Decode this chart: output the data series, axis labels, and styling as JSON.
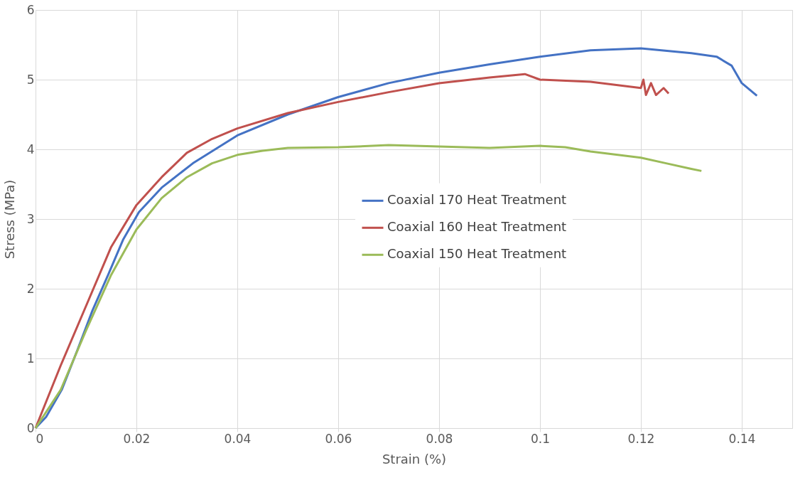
{
  "chart_data": {
    "type": "line",
    "xlabel": "Strain (%)",
    "ylabel": "Stress (MPa)",
    "xlim": [
      0,
      0.15
    ],
    "xticks": [
      0,
      0.02,
      0.04,
      0.06,
      0.08,
      0.1,
      0.12,
      0.14
    ],
    "ylim": [
      0,
      6
    ],
    "yticks": [
      0,
      1,
      2,
      3,
      4,
      5,
      6
    ],
    "grid": true,
    "legend": "right",
    "marker": "none",
    "line_style": "solid",
    "series": [
      {
        "name": "Coaxial 170 Heat Treatment",
        "color": "#4472c4",
        "x": [
          0,
          0.0021,
          0.0052,
          0.0083,
          0.0113,
          0.0144,
          0.0174,
          0.0205,
          0.025,
          0.0312,
          0.04,
          0.05,
          0.06,
          0.07,
          0.08,
          0.09,
          0.1,
          0.11,
          0.12,
          0.13,
          0.135,
          0.138,
          0.14,
          0.143
        ],
        "values": [
          0,
          0.16,
          0.55,
          1.12,
          1.69,
          2.2,
          2.71,
          3.1,
          3.45,
          3.8,
          4.2,
          4.5,
          4.75,
          4.95,
          5.1,
          5.22,
          5.33,
          5.42,
          5.45,
          5.38,
          5.33,
          5.2,
          4.95,
          4.77
        ]
      },
      {
        "name": "Coaxial 160 Heat Treatment",
        "color": "#c0504d",
        "x": [
          0,
          0.005,
          0.01,
          0.015,
          0.02,
          0.025,
          0.03,
          0.035,
          0.04,
          0.05,
          0.06,
          0.07,
          0.08,
          0.09,
          0.097,
          0.1,
          0.11,
          0.12,
          0.1205,
          0.121,
          0.122,
          0.123,
          0.1245,
          0.1255
        ],
        "values": [
          0,
          0.9,
          1.75,
          2.6,
          3.2,
          3.6,
          3.95,
          4.15,
          4.3,
          4.52,
          4.68,
          4.82,
          4.95,
          5.03,
          5.08,
          5.0,
          4.97,
          4.88,
          5.0,
          4.78,
          4.95,
          4.78,
          4.88,
          4.8
        ]
      },
      {
        "name": "Coaxial 150 Heat Treatment",
        "color": "#9bbb59",
        "x": [
          0,
          0.005,
          0.01,
          0.015,
          0.02,
          0.025,
          0.03,
          0.035,
          0.04,
          0.045,
          0.05,
          0.06,
          0.07,
          0.08,
          0.09,
          0.1,
          0.105,
          0.11,
          0.12,
          0.125,
          0.13,
          0.132
        ],
        "values": [
          0,
          0.55,
          1.4,
          2.2,
          2.85,
          3.3,
          3.6,
          3.8,
          3.92,
          3.98,
          4.02,
          4.03,
          4.06,
          4.04,
          4.02,
          4.05,
          4.03,
          3.97,
          3.88,
          3.8,
          3.72,
          3.69
        ]
      }
    ]
  }
}
